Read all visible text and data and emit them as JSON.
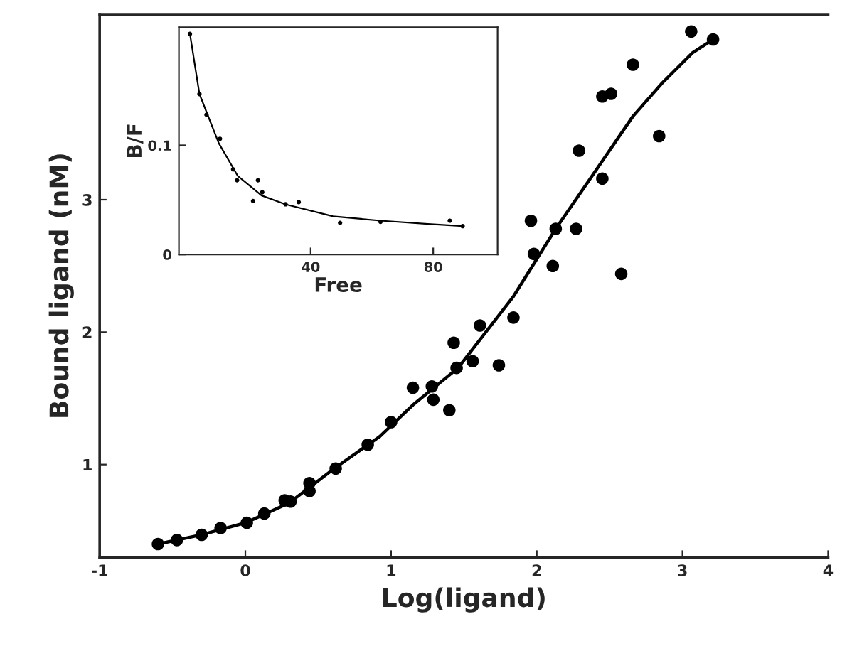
{
  "chart_data": [
    {
      "type": "scatter",
      "xlabel": "Log(ligand)",
      "ylabel": "Bound ligand (nM)",
      "xlim": [
        -1,
        4
      ],
      "ylim": [
        0.3,
        4.4
      ],
      "xticks": [
        -1,
        0,
        1,
        2,
        3,
        4
      ],
      "yticks": [
        1,
        2,
        3
      ],
      "grid": false,
      "series": [
        {
          "marker": "circle",
          "color": "#000000",
          "x": [
            -0.6,
            -0.47,
            -0.3,
            -0.17,
            0.01,
            0.13,
            0.27,
            0.31,
            0.44,
            0.44,
            0.62,
            0.84,
            1.0,
            1.15,
            1.28,
            1.29,
            1.4,
            1.43,
            1.45,
            1.56,
            1.61,
            1.74,
            1.84,
            1.96,
            1.98,
            2.11,
            2.13,
            2.27,
            2.29,
            2.45,
            2.45,
            2.51,
            2.58,
            2.66,
            2.84,
            3.06,
            3.21
          ],
          "values": [
            0.4,
            0.43,
            0.47,
            0.52,
            0.56,
            0.63,
            0.73,
            0.72,
            0.86,
            0.8,
            0.97,
            1.15,
            1.32,
            1.58,
            1.59,
            1.49,
            1.41,
            1.92,
            1.73,
            1.78,
            2.05,
            1.75,
            2.11,
            2.84,
            2.59,
            2.5,
            2.78,
            2.78,
            3.37,
            3.16,
            3.78,
            3.8,
            2.44,
            4.02,
            3.48,
            4.27,
            4.21
          ]
        },
        {
          "type": "line",
          "marker": "none",
          "color": "#000000",
          "line_style": "solid",
          "x": [
            -0.6,
            -0.3,
            0.0,
            0.3,
            0.61,
            0.92,
            1.15,
            1.46,
            1.84,
            2.13,
            2.43,
            2.66,
            2.86,
            3.07,
            3.21
          ],
          "values": [
            0.4,
            0.47,
            0.56,
            0.71,
            0.97,
            1.21,
            1.45,
            1.73,
            2.27,
            2.78,
            3.26,
            3.63,
            3.88,
            4.11,
            4.21
          ]
        }
      ]
    },
    {
      "type": "scatter",
      "xlabel": "Free",
      "ylabel": "B/F",
      "xlim": [
        -3,
        101
      ],
      "ylim": [
        0,
        0.208
      ],
      "xticks": [
        40,
        80
      ],
      "yticks": [
        0,
        0.1
      ],
      "grid": false,
      "series": [
        {
          "marker": "circle",
          "color": "#000000",
          "x": [
            0.6,
            3.7,
            6.0,
            10.4,
            14.7,
            16.0,
            21.2,
            22.8,
            24.2,
            31.8,
            36.1,
            49.6,
            62.8,
            85.4,
            89.6
          ],
          "values": [
            0.202,
            0.147,
            0.128,
            0.106,
            0.078,
            0.068,
            0.049,
            0.068,
            0.057,
            0.046,
            0.048,
            0.029,
            0.03,
            0.031,
            0.026
          ]
        },
        {
          "type": "line",
          "marker": "none",
          "color": "#000000",
          "line_style": "solid",
          "x": [
            0.6,
            3.7,
            10.0,
            16.2,
            24.0,
            31.8,
            47.3,
            62.8,
            78.3,
            89.6
          ],
          "values": [
            0.202,
            0.147,
            0.102,
            0.072,
            0.054,
            0.046,
            0.035,
            0.031,
            0.028,
            0.026
          ]
        }
      ]
    }
  ]
}
